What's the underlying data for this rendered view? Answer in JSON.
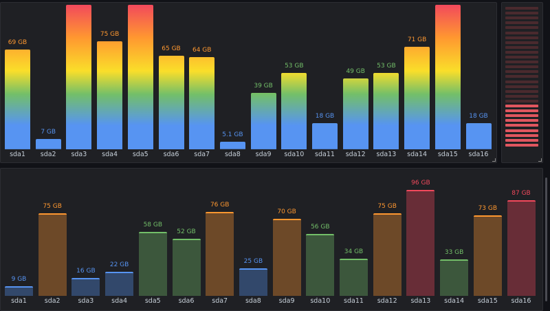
{
  "top_panel": {
    "bars": [
      {
        "label": "sda1",
        "value_label": "69 GB",
        "value": 69,
        "color": "#ff9830"
      },
      {
        "label": "sda2",
        "value_label": "7 GB",
        "value": 7,
        "color": "#5794f2"
      },
      {
        "label": "sda3",
        "value_label": "",
        "value": 100,
        "color": "#ff9830"
      },
      {
        "label": "sda4",
        "value_label": "75 GB",
        "value": 75,
        "color": "#ff9830"
      },
      {
        "label": "sda5",
        "value_label": "",
        "value": 100,
        "color": "#f2495c"
      },
      {
        "label": "sda6",
        "value_label": "65 GB",
        "value": 65,
        "color": "#ff9830"
      },
      {
        "label": "sda7",
        "value_label": "64 GB",
        "value": 64,
        "color": "#ff9830"
      },
      {
        "label": "sda8",
        "value_label": "5.1 GB",
        "value": 5.1,
        "color": "#5794f2"
      },
      {
        "label": "sda9",
        "value_label": "39 GB",
        "value": 39,
        "color": "#73bf69"
      },
      {
        "label": "sda10",
        "value_label": "53 GB",
        "value": 53,
        "color": "#73bf69"
      },
      {
        "label": "sda11",
        "value_label": "18 GB",
        "value": 18,
        "color": "#5794f2"
      },
      {
        "label": "sda12",
        "value_label": "49 GB",
        "value": 49,
        "color": "#73bf69"
      },
      {
        "label": "sda13",
        "value_label": "53 GB",
        "value": 53,
        "color": "#73bf69"
      },
      {
        "label": "sda14",
        "value_label": "71 GB",
        "value": 71,
        "color": "#ff9830"
      },
      {
        "label": "sda15",
        "value_label": "",
        "value": 100,
        "color": "#f2495c"
      },
      {
        "label": "sda16",
        "value_label": "18 GB",
        "value": 18,
        "color": "#5794f2"
      }
    ]
  },
  "meter_panel": {
    "segments_total": 29,
    "segments_lit": 9,
    "lit_color": "#e0565f",
    "unlit_color": "#4a2a2e"
  },
  "bottom_panel": {
    "bars": [
      {
        "label": "sda1",
        "value_label": "9 GB",
        "value": 9,
        "color": "#5794f2"
      },
      {
        "label": "sda2",
        "value_label": "75 GB",
        "value": 75,
        "color": "#ff9830"
      },
      {
        "label": "sda3",
        "value_label": "16 GB",
        "value": 16,
        "color": "#5794f2"
      },
      {
        "label": "sda4",
        "value_label": "22 GB",
        "value": 22,
        "color": "#5794f2"
      },
      {
        "label": "sda5",
        "value_label": "58 GB",
        "value": 58,
        "color": "#73bf69"
      },
      {
        "label": "sda6",
        "value_label": "52 GB",
        "value": 52,
        "color": "#73bf69"
      },
      {
        "label": "sda7",
        "value_label": "76 GB",
        "value": 76,
        "color": "#ff9830"
      },
      {
        "label": "sda8",
        "value_label": "25 GB",
        "value": 25,
        "color": "#5794f2"
      },
      {
        "label": "sda9",
        "value_label": "70 GB",
        "value": 70,
        "color": "#ff9830"
      },
      {
        "label": "sda10",
        "value_label": "56 GB",
        "value": 56,
        "color": "#73bf69"
      },
      {
        "label": "sda11",
        "value_label": "34 GB",
        "value": 34,
        "color": "#73bf69"
      },
      {
        "label": "sda12",
        "value_label": "75 GB",
        "value": 75,
        "color": "#ff9830"
      },
      {
        "label": "sda13",
        "value_label": "96 GB",
        "value": 96,
        "color": "#f2495c"
      },
      {
        "label": "sda14",
        "value_label": "33 GB",
        "value": 33,
        "color": "#73bf69"
      },
      {
        "label": "sda15",
        "value_label": "73 GB",
        "value": 73,
        "color": "#ff9830"
      },
      {
        "label": "sda16",
        "value_label": "87 GB",
        "value": 87,
        "color": "#f2495c"
      }
    ]
  },
  "chart_data": [
    {
      "type": "bar",
      "categories": [
        "sda1",
        "sda2",
        "sda3",
        "sda4",
        "sda5",
        "sda6",
        "sda7",
        "sda8",
        "sda9",
        "sda10",
        "sda11",
        "sda12",
        "sda13",
        "sda14",
        "sda15",
        "sda16"
      ],
      "values": [
        69,
        7,
        100,
        75,
        100,
        65,
        64,
        5.1,
        39,
        53,
        18,
        49,
        53,
        71,
        100,
        18
      ],
      "ylabel": "",
      "xlabel": "",
      "ylim": [
        0,
        100
      ]
    },
    {
      "type": "bar",
      "categories": [
        "sda1",
        "sda2",
        "sda3",
        "sda4",
        "sda5",
        "sda6",
        "sda7",
        "sda8",
        "sda9",
        "sda10",
        "sda11",
        "sda12",
        "sda13",
        "sda14",
        "sda15",
        "sda16"
      ],
      "values": [
        9,
        75,
        16,
        22,
        58,
        52,
        76,
        25,
        70,
        56,
        34,
        75,
        96,
        33,
        73,
        87
      ],
      "ylabel": "",
      "xlabel": "",
      "ylim": [
        0,
        100
      ]
    }
  ]
}
